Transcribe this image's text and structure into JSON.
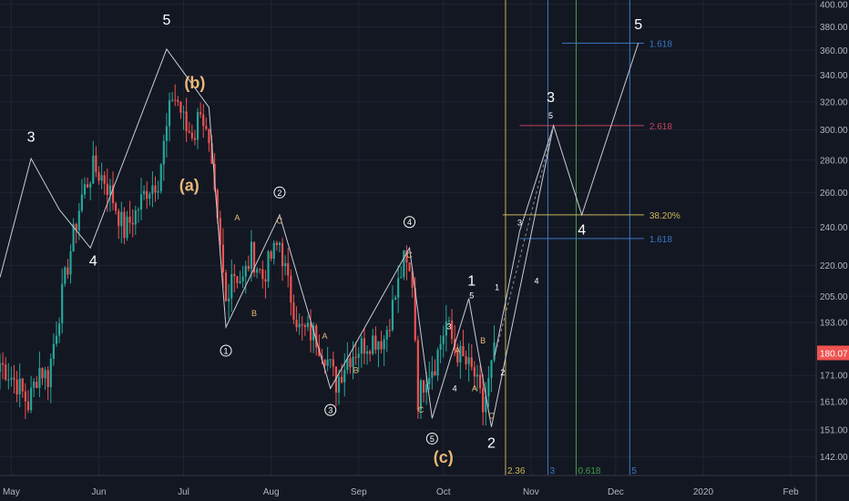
{
  "chart_data": {
    "type": "candlestick",
    "title": "",
    "theme": "dark",
    "colors": {
      "background": "#131722",
      "grid": "#1f2433",
      "up": "#26a69a",
      "down": "#ef5350",
      "wave": "#c8ccd6",
      "wave_dashed": "#8a8f9c",
      "gold": "#e8b878",
      "gold_line": "#c9b458",
      "red_line": "#c2435a",
      "blue_line": "#3a78c4",
      "green_line": "#3fa14a",
      "price_tag": "#ef5350",
      "axis_text": "#b2b5be"
    },
    "y_axis": {
      "scale": "log",
      "range": [
        136,
        404
      ],
      "tick_labels": [
        "400.00",
        "380.00",
        "360.00",
        "340.00",
        "320.00",
        "300.00",
        "280.00",
        "260.00",
        "240.00",
        "220.00",
        "205.00",
        "193.00",
        "180.07",
        "171.00",
        "161.00",
        "151.00",
        "142.00"
      ],
      "ticks": [
        400,
        380,
        360,
        340,
        320,
        300,
        280,
        260,
        240,
        220,
        205,
        193,
        171,
        161,
        151,
        142
      ],
      "current_price_label": "180.07",
      "current_price": 180.07
    },
    "x_axis": {
      "range_days": [
        -4,
        285
      ],
      "tick_labels": [
        "May",
        "Jun",
        "Jul",
        "Aug",
        "Sep",
        "Oct",
        "Nov",
        "Dec",
        "2020",
        "Feb"
      ],
      "tick_days": [
        0,
        31,
        61,
        92,
        123,
        153,
        184,
        214,
        245,
        276
      ]
    },
    "ohlc_keys": [
      {
        "day": -4,
        "close": 176
      },
      {
        "day": 2,
        "close": 168
      },
      {
        "day": 6,
        "close": 160
      },
      {
        "day": 10,
        "close": 174
      },
      {
        "day": 13,
        "close": 170
      },
      {
        "day": 17,
        "close": 198
      },
      {
        "day": 21,
        "close": 228
      },
      {
        "day": 25,
        "close": 258
      },
      {
        "day": 29,
        "close": 275
      },
      {
        "day": 33,
        "close": 268
      },
      {
        "day": 36,
        "close": 256
      },
      {
        "day": 40,
        "close": 238
      },
      {
        "day": 44,
        "close": 248
      },
      {
        "day": 48,
        "close": 262
      },
      {
        "day": 52,
        "close": 268
      },
      {
        "day": 55,
        "close": 300
      },
      {
        "day": 57,
        "close": 325
      },
      {
        "day": 59,
        "close": 320
      },
      {
        "day": 62,
        "close": 300
      },
      {
        "day": 65,
        "close": 298
      },
      {
        "day": 67,
        "close": 318
      },
      {
        "day": 70,
        "close": 285
      },
      {
        "day": 73,
        "close": 240
      },
      {
        "day": 76,
        "close": 202
      },
      {
        "day": 78,
        "close": 218
      },
      {
        "day": 82,
        "close": 212
      },
      {
        "day": 85,
        "close": 226
      },
      {
        "day": 89,
        "close": 214
      },
      {
        "day": 92,
        "close": 224
      },
      {
        "day": 95,
        "close": 232
      },
      {
        "day": 98,
        "close": 210
      },
      {
        "day": 102,
        "close": 190
      },
      {
        "day": 107,
        "close": 188
      },
      {
        "day": 111,
        "close": 180
      },
      {
        "day": 115,
        "close": 168
      },
      {
        "day": 119,
        "close": 178
      },
      {
        "day": 124,
        "close": 183
      },
      {
        "day": 128,
        "close": 186
      },
      {
        "day": 132,
        "close": 186
      },
      {
        "day": 136,
        "close": 205
      },
      {
        "day": 139,
        "close": 222
      },
      {
        "day": 142,
        "close": 212
      },
      {
        "day": 144,
        "close": 162
      },
      {
        "day": 147,
        "close": 172
      },
      {
        "day": 150,
        "close": 176
      },
      {
        "day": 154,
        "close": 193
      },
      {
        "day": 157,
        "close": 182
      },
      {
        "day": 160,
        "close": 177
      },
      {
        "day": 164,
        "close": 171
      },
      {
        "day": 167,
        "close": 158
      },
      {
        "day": 169,
        "close": 168
      },
      {
        "day": 171,
        "close": 180
      }
    ],
    "wave_path": [
      {
        "day": -4,
        "price": 214
      },
      {
        "day": 7,
        "price": 281
      },
      {
        "day": 17,
        "price": 250
      },
      {
        "day": 28,
        "price": 229
      },
      {
        "day": 55,
        "price": 361
      },
      {
        "day": 70,
        "price": 316
      },
      {
        "day": 76,
        "price": 191
      },
      {
        "day": 95,
        "price": 247
      },
      {
        "day": 113,
        "price": 166
      },
      {
        "day": 141,
        "price": 229
      },
      {
        "day": 149,
        "price": 155
      },
      {
        "day": 162,
        "price": 204
      },
      {
        "day": 170,
        "price": 152
      },
      {
        "day": 175,
        "price": 178
      },
      {
        "day": 192,
        "price": 303
      },
      {
        "day": 202,
        "price": 247
      },
      {
        "day": 222,
        "price": 366
      }
    ],
    "dashed_wave": [
      {
        "day": 171,
        "price": 178
      },
      {
        "day": 192,
        "price": 303
      }
    ],
    "minor_wave": [
      {
        "day": 171,
        "price": 178
      },
      {
        "day": 180,
        "price": 238
      },
      {
        "day": 192,
        "price": 303
      }
    ],
    "horizontal_lines": [
      {
        "label": "1.618",
        "price": 366,
        "from_day": 195,
        "to_day": 224,
        "color_key": "blue_line"
      },
      {
        "label": "2.618",
        "price": 303,
        "from_day": 180,
        "to_day": 224,
        "color_key": "red_line"
      },
      {
        "label": "38.20%",
        "price": 247,
        "from_day": 174,
        "to_day": 224,
        "color_key": "gold_line"
      },
      {
        "label": "1.618",
        "price": 234,
        "from_day": 180,
        "to_day": 224,
        "color_key": "blue_line"
      }
    ],
    "vertical_lines": [
      {
        "label": "2.36",
        "day": 175,
        "color_key": "gold_line"
      },
      {
        "label": "3",
        "day": 190,
        "color_key": "blue_line"
      },
      {
        "label": "0.618",
        "day": 200,
        "color_key": "green_line"
      },
      {
        "label": "5",
        "day": 219,
        "color_key": "blue_line"
      }
    ],
    "wave_labels": [
      {
        "text": "3",
        "day": 7,
        "price": 292,
        "style": "white-large"
      },
      {
        "text": "4",
        "day": 29,
        "price": 220,
        "style": "white-large"
      },
      {
        "text": "5",
        "day": 55,
        "price": 382,
        "style": "white-large"
      },
      {
        "text": "(b)",
        "day": 65,
        "price": 330,
        "style": "gold-large"
      },
      {
        "text": "(a)",
        "day": 63,
        "price": 261,
        "style": "gold-large"
      },
      {
        "text": "A",
        "day": 80,
        "price": 244,
        "style": "gold-small"
      },
      {
        "text": "C",
        "day": 95,
        "price": 242,
        "style": "gold-small"
      },
      {
        "text": "B",
        "day": 86,
        "price": 196,
        "style": "gold-small"
      },
      {
        "text": "A",
        "day": 111,
        "price": 186,
        "style": "gold-small"
      },
      {
        "text": "B",
        "day": 122,
        "price": 172,
        "style": "gold-small"
      },
      {
        "text": "C",
        "day": 141,
        "price": 224,
        "style": "gold-small"
      },
      {
        "text": "C",
        "day": 145,
        "price": 157,
        "style": "gold-small"
      },
      {
        "text": "A",
        "day": 158,
        "price": 180,
        "style": "gold-small"
      },
      {
        "text": "B",
        "day": 167,
        "price": 184,
        "style": "gold-small"
      },
      {
        "text": "A",
        "day": 164,
        "price": 165,
        "style": "gold-small"
      },
      {
        "text": "C",
        "day": 170,
        "price": 155,
        "style": "gold-small"
      },
      {
        "text": "(c)",
        "day": 153,
        "price": 140,
        "style": "gold-large"
      },
      {
        "text": "3",
        "day": 155,
        "price": 190,
        "style": "white-small"
      },
      {
        "text": "4",
        "day": 157,
        "price": 165,
        "style": "white-small"
      },
      {
        "text": "1",
        "day": 163,
        "price": 210,
        "style": "white-large"
      },
      {
        "text": "5",
        "day": 163,
        "price": 204,
        "style": "white-small"
      },
      {
        "text": "1",
        "day": 172,
        "price": 208,
        "style": "white-small"
      },
      {
        "text": "2",
        "day": 174,
        "price": 171,
        "style": "white-small"
      },
      {
        "text": "2",
        "day": 170,
        "price": 145,
        "style": "white-large"
      },
      {
        "text": "3",
        "day": 180,
        "price": 241,
        "style": "white-small"
      },
      {
        "text": "4",
        "day": 186,
        "price": 211,
        "style": "white-small"
      },
      {
        "text": "3",
        "day": 191,
        "price": 320,
        "style": "white-large"
      },
      {
        "text": "5",
        "day": 191,
        "price": 308,
        "style": "white-small"
      },
      {
        "text": "4",
        "day": 202,
        "price": 236,
        "style": "white-large"
      },
      {
        "text": "5",
        "day": 222,
        "price": 378,
        "style": "white-large"
      }
    ],
    "circled_labels": [
      {
        "text": "1",
        "day": 76,
        "price": 181
      },
      {
        "text": "2",
        "day": 95,
        "price": 260
      },
      {
        "text": "3",
        "day": 113,
        "price": 158
      },
      {
        "text": "4",
        "day": 141,
        "price": 243
      },
      {
        "text": "5",
        "day": 149,
        "price": 148
      }
    ]
  }
}
